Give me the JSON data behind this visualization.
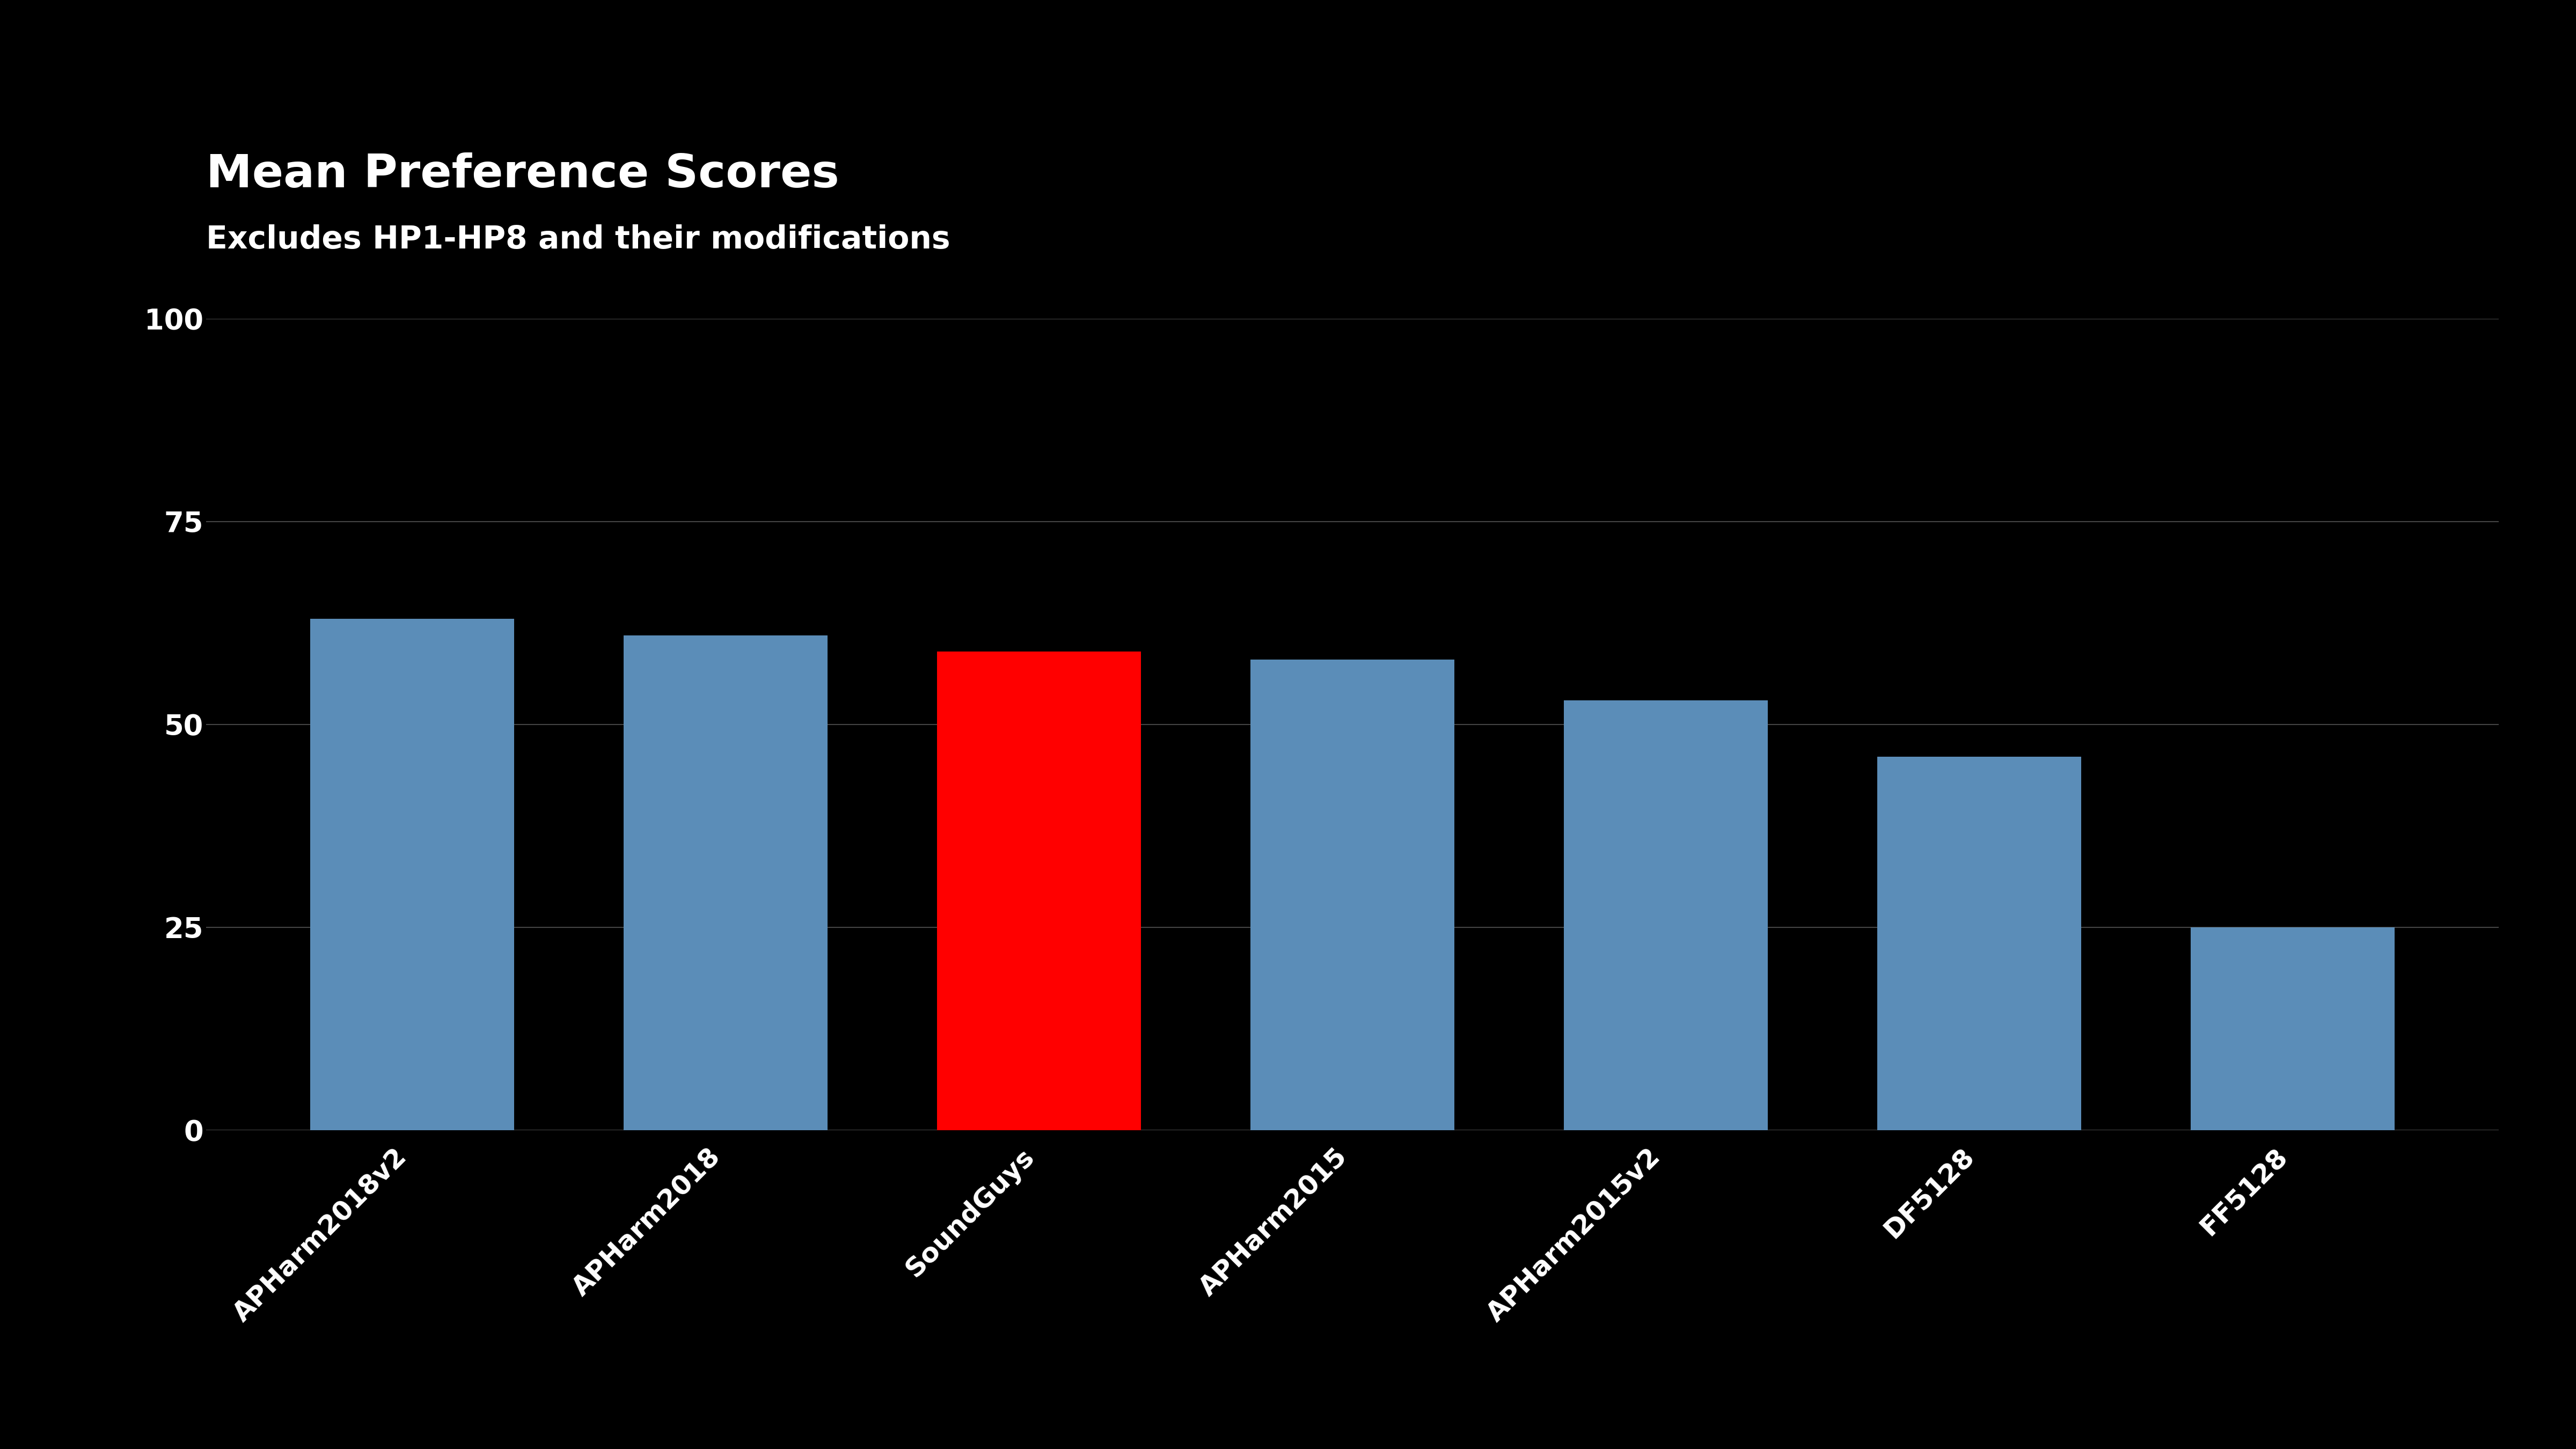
{
  "title": "Mean Preference Scores",
  "subtitle": "Excludes HP1-HP8 and their modifications",
  "categories": [
    "APHarm2018v2",
    "APHarm2018",
    "SoundGuys",
    "APHarm2015",
    "APHarm2015v2",
    "DF5128",
    "FF5128"
  ],
  "values": [
    63,
    61,
    59,
    58,
    53,
    46,
    25
  ],
  "bar_colors": [
    "#5b8db8",
    "#5b8db8",
    "#ff0000",
    "#5b8db8",
    "#5b8db8",
    "#5b8db8",
    "#5b8db8"
  ],
  "background_color": "#000000",
  "text_color": "#ffffff",
  "grid_color": "#444444",
  "ylim": [
    0,
    100
  ],
  "yticks": [
    0,
    25,
    50,
    75,
    100
  ],
  "title_fontsize": 62,
  "subtitle_fontsize": 42,
  "tick_fontsize": 38,
  "xlabel_fontsize": 36,
  "bar_width": 0.65
}
